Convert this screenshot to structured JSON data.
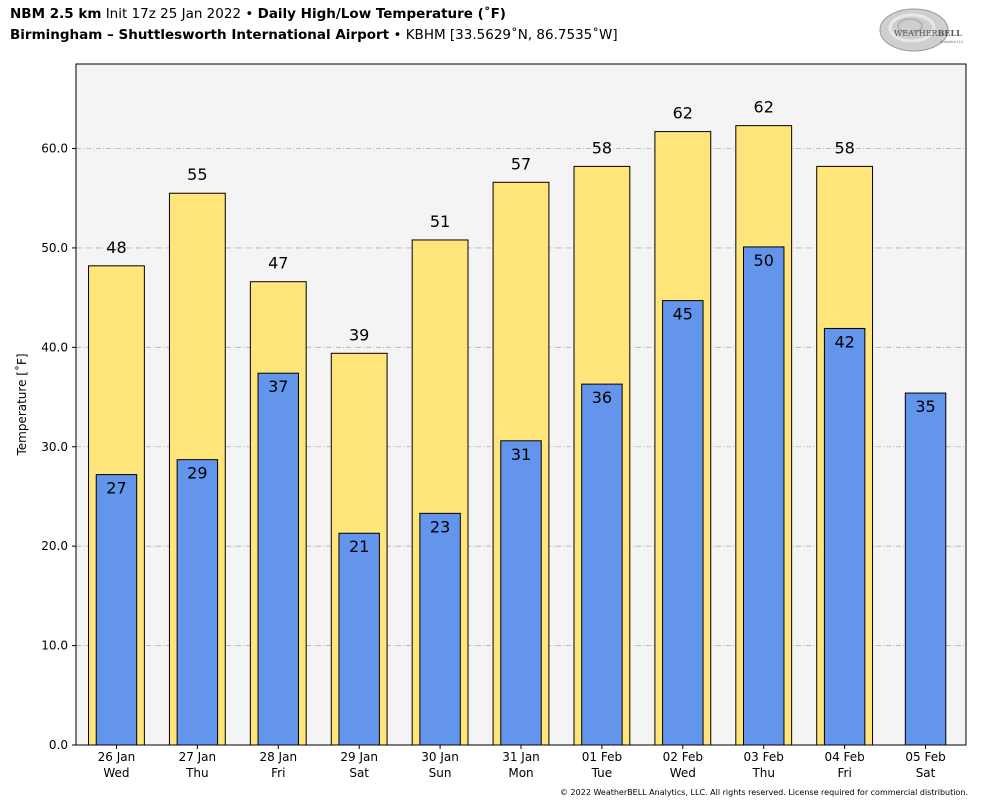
{
  "header": {
    "model": "NBM 2.5 km",
    "init": "Init 17z 25 Jan 2022",
    "bullet": "•",
    "product": "Daily High/Low Temperature (˚F)",
    "location": "Birmingham – Shuttlesworth International Airport",
    "station": "KBHM [33.5629˚N, 86.7535˚W]"
  },
  "logo": {
    "text_main": "WEATHER",
    "text_bold": "BELL",
    "text_sub": "Analytics LLC"
  },
  "copyright": "© 2022 WeatherBELL Analytics, LLC. All rights reserved. License required for commercial distribution.",
  "colors": {
    "high": "#ffe57a",
    "low": "#6495ed",
    "background": "#f4f4f4",
    "grid": "#b0b0b0"
  },
  "chart_data": {
    "type": "bar",
    "ylabel": "Temperature [˚F]",
    "ylim": [
      0,
      68.5
    ],
    "yticks": [
      "0.0",
      "10.0",
      "20.0",
      "30.0",
      "40.0",
      "50.0",
      "60.0"
    ],
    "grid": true,
    "categories": [
      {
        "date": "26 Jan",
        "day": "Wed"
      },
      {
        "date": "27 Jan",
        "day": "Thu"
      },
      {
        "date": "28 Jan",
        "day": "Fri"
      },
      {
        "date": "29 Jan",
        "day": "Sat"
      },
      {
        "date": "30 Jan",
        "day": "Sun"
      },
      {
        "date": "31 Jan",
        "day": "Mon"
      },
      {
        "date": "01 Feb",
        "day": "Tue"
      },
      {
        "date": "02 Feb",
        "day": "Wed"
      },
      {
        "date": "03 Feb",
        "day": "Thu"
      },
      {
        "date": "04 Feb",
        "day": "Fri"
      },
      {
        "date": "05 Feb",
        "day": "Sat"
      }
    ],
    "series": [
      {
        "key": "high",
        "values": [
          48.2,
          55.5,
          46.6,
          39.4,
          50.8,
          56.6,
          58.2,
          61.7,
          62.3,
          58.2,
          null
        ],
        "labels": [
          "48",
          "55",
          "47",
          "39",
          "51",
          "57",
          "58",
          "62",
          "62",
          "58",
          ""
        ]
      },
      {
        "key": "low",
        "values": [
          27.2,
          28.7,
          37.4,
          21.3,
          23.3,
          30.6,
          36.3,
          44.7,
          50.1,
          41.9,
          35.4
        ],
        "labels": [
          "27",
          "29",
          "37",
          "21",
          "23",
          "31",
          "36",
          "45",
          "50",
          "42",
          "35"
        ]
      }
    ]
  }
}
